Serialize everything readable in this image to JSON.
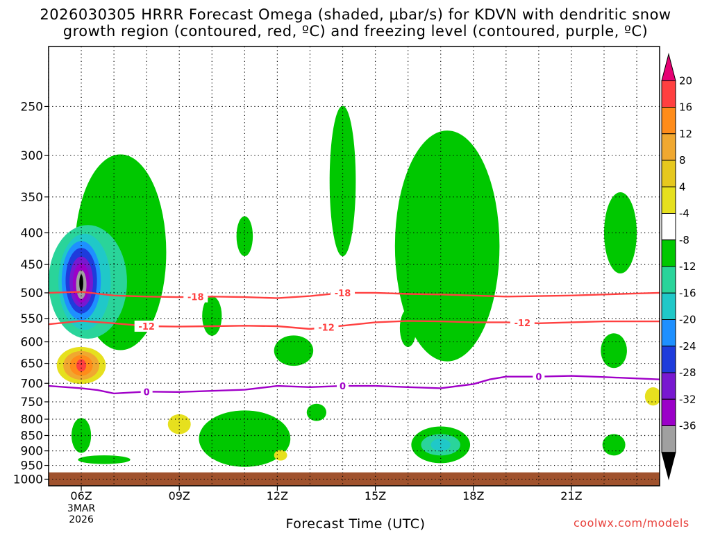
{
  "title_line1": "2026030305 HRRR Forecast Omega (shaded, μbar/s) for KDVN with dendritic snow",
  "title_line2": "growth region (contoured, red, ºC) and freezing level (contoured, purple, ºC)",
  "credit": "coolwx.com/models",
  "chart_data": {
    "type": "contour",
    "xlabel": "Forecast Time (UTC)",
    "x_ticks": [
      {
        "hour": 6,
        "label": "06Z",
        "sublabels": [
          "3MAR",
          "2026"
        ]
      },
      {
        "hour": 9,
        "label": "09Z"
      },
      {
        "hour": 12,
        "label": "12Z"
      },
      {
        "hour": 15,
        "label": "15Z"
      },
      {
        "hour": 18,
        "label": "18Z"
      },
      {
        "hour": 21,
        "label": "21Z"
      }
    ],
    "xlim": [
      5,
      23.7
    ],
    "ylim_hPa": [
      200,
      1025
    ],
    "y_scale": "log",
    "y_ticks": [
      250,
      300,
      350,
      400,
      450,
      500,
      550,
      600,
      650,
      700,
      750,
      800,
      850,
      900,
      950,
      1000
    ],
    "grid": true,
    "colorbar": {
      "labels": [
        "20",
        "16",
        "12",
        "8",
        "4",
        "-4",
        "-8",
        "-12",
        "-16",
        "-20",
        "-24",
        "-28",
        "-32",
        "-36"
      ],
      "colors": [
        "#e60073",
        "#ff4040",
        "#ff8c1a",
        "#f0a830",
        "#e6c81e",
        "#e6e01e",
        "#ffffff",
        "#00c800",
        "#2ad49a",
        "#20c8c8",
        "#1e90ff",
        "#1e3cdc",
        "#7818d0",
        "#9b00c8",
        "#a0a0a0",
        "#000000"
      ]
    },
    "ground_level_hPa": 975,
    "series": [
      {
        "name": "-18",
        "color": "#ff4040",
        "label_hours": [
          9.5,
          14
        ],
        "points": [
          [
            5,
            500
          ],
          [
            6,
            498
          ],
          [
            7,
            505
          ],
          [
            8,
            507
          ],
          [
            9,
            508
          ],
          [
            10,
            507
          ],
          [
            11,
            508
          ],
          [
            12,
            510
          ],
          [
            13,
            506
          ],
          [
            14,
            500
          ],
          [
            15,
            500
          ],
          [
            16,
            502
          ],
          [
            17,
            503
          ],
          [
            18,
            505
          ],
          [
            19,
            507
          ],
          [
            20,
            506
          ],
          [
            21,
            505
          ],
          [
            22,
            503
          ],
          [
            23.7,
            500
          ]
        ]
      },
      {
        "name": "-12",
        "color": "#ff4040",
        "label_hours": [
          8,
          13.5,
          19.5
        ],
        "points": [
          [
            5,
            562
          ],
          [
            6,
            555
          ],
          [
            7,
            560
          ],
          [
            8,
            566
          ],
          [
            9,
            567
          ],
          [
            10,
            566
          ],
          [
            11,
            565
          ],
          [
            12,
            566
          ],
          [
            13,
            572
          ],
          [
            14,
            565
          ],
          [
            15,
            558
          ],
          [
            16,
            555
          ],
          [
            17,
            556
          ],
          [
            18,
            558
          ],
          [
            19,
            558
          ],
          [
            20,
            560
          ],
          [
            21,
            558
          ],
          [
            22,
            556
          ],
          [
            23.7,
            556
          ]
        ]
      },
      {
        "name": "0",
        "color": "#a000c8",
        "label_hours": [
          8,
          14,
          20
        ],
        "points": [
          [
            5,
            707
          ],
          [
            6,
            713
          ],
          [
            6.5,
            718
          ],
          [
            7,
            727
          ],
          [
            8,
            722
          ],
          [
            9,
            723
          ],
          [
            10,
            720
          ],
          [
            11,
            717
          ],
          [
            12,
            707
          ],
          [
            13,
            710
          ],
          [
            14,
            707
          ],
          [
            15,
            707
          ],
          [
            16,
            710
          ],
          [
            17,
            713
          ],
          [
            18,
            702
          ],
          [
            18.5,
            690
          ],
          [
            19,
            683
          ],
          [
            20,
            683
          ],
          [
            21,
            681
          ],
          [
            22,
            684
          ],
          [
            23.7,
            690
          ]
        ]
      }
    ],
    "omega_areas": [
      {
        "level": "-4",
        "color": "#00c800",
        "center_hour": 7.2,
        "center_hPa": 430,
        "hour_radius": 1.4,
        "hPa_radius": 150
      },
      {
        "level": "-4",
        "color": "#00c800",
        "center_hour": 14,
        "center_hPa": 330,
        "hour_radius": 0.4,
        "hPa_radius": 90
      },
      {
        "level": "-4",
        "color": "#00c800",
        "center_hour": 17.2,
        "center_hPa": 420,
        "hour_radius": 1.6,
        "hPa_radius": 170
      },
      {
        "level": "-4",
        "color": "#00c800",
        "center_hour": 11,
        "center_hPa": 860,
        "hour_radius": 1.4,
        "hPa_radius": 90
      },
      {
        "level": "-4",
        "color": "#00c800",
        "center_hour": 17,
        "center_hPa": 880,
        "hour_radius": 0.9,
        "hPa_radius": 60
      },
      {
        "level": "-4",
        "color": "#00c800",
        "center_hour": 22.5,
        "center_hPa": 400,
        "hour_radius": 0.5,
        "hPa_radius": 60
      },
      {
        "level": "-4",
        "color": "#00c800",
        "center_hour": 22.3,
        "center_hPa": 620,
        "hour_radius": 0.4,
        "hPa_radius": 40
      },
      {
        "level": "-4",
        "color": "#00c800",
        "center_hour": 22.3,
        "center_hPa": 880,
        "hour_radius": 0.35,
        "hPa_radius": 35
      },
      {
        "level": "-4",
        "color": "#00c800",
        "center_hour": 10,
        "center_hPa": 545,
        "hour_radius": 0.3,
        "hPa_radius": 40
      },
      {
        "level": "-4",
        "color": "#00c800",
        "center_hour": 11,
        "center_hPa": 405,
        "hour_radius": 0.25,
        "hPa_radius": 30
      },
      {
        "level": "-4",
        "color": "#00c800",
        "center_hour": 12.5,
        "center_hPa": 620,
        "hour_radius": 0.6,
        "hPa_radius": 35
      },
      {
        "level": "-4",
        "color": "#00c800",
        "center_hour": 13.2,
        "center_hPa": 780,
        "hour_radius": 0.3,
        "hPa_radius": 25
      },
      {
        "level": "-4",
        "color": "#00c800",
        "center_hour": 16,
        "center_hPa": 570,
        "hour_radius": 0.25,
        "hPa_radius": 40
      },
      {
        "level": "-4",
        "color": "#00c800",
        "center_hour": 6,
        "center_hPa": 850,
        "hour_radius": 0.3,
        "hPa_radius": 55
      },
      {
        "level": "-4",
        "color": "#00c800",
        "center_hour": 6.7,
        "center_hPa": 930,
        "hour_radius": 0.8,
        "hPa_radius": 15
      },
      {
        "level": "-8",
        "color": "#2ad49a",
        "center_hour": 6.2,
        "center_hPa": 480,
        "hour_radius": 1.2,
        "hPa_radius": 100
      },
      {
        "level": "-8",
        "color": "#2ad49a",
        "center_hour": 17,
        "center_hPa": 880,
        "hour_radius": 0.6,
        "hPa_radius": 35
      },
      {
        "level": "-12",
        "color": "#20c8c8",
        "center_hour": 6.1,
        "center_hPa": 480,
        "hour_radius": 0.8,
        "hPa_radius": 85
      },
      {
        "level": "-12",
        "color": "#20c8c8",
        "center_hour": 17,
        "center_hPa": 880,
        "hour_radius": 0.3,
        "hPa_radius": 20
      },
      {
        "level": "-16",
        "color": "#1e90ff",
        "center_hour": 6,
        "center_hPa": 478,
        "hour_radius": 0.6,
        "hPa_radius": 70
      },
      {
        "level": "-20",
        "color": "#1e3cdc",
        "center_hour": 6,
        "center_hPa": 478,
        "hour_radius": 0.48,
        "hPa_radius": 58
      },
      {
        "level": "-24",
        "color": "#7818d0",
        "center_hour": 6,
        "center_hPa": 480,
        "hour_radius": 0.36,
        "hPa_radius": 45
      },
      {
        "level": "-28",
        "color": "#9b00c8",
        "center_hour": 6,
        "center_hPa": 482,
        "hour_radius": 0.26,
        "hPa_radius": 35
      },
      {
        "level": "-32",
        "color": "#a0a0a0",
        "center_hour": 6,
        "center_hPa": 485,
        "hour_radius": 0.16,
        "hPa_radius": 26
      },
      {
        "level": "-36",
        "color": "#000000",
        "center_hour": 6,
        "center_hPa": 482,
        "hour_radius": 0.06,
        "hPa_radius": 15
      },
      {
        "level": "4",
        "color": "#e6e01e",
        "center_hour": 6,
        "center_hPa": 655,
        "hour_radius": 0.75,
        "hPa_radius": 45
      },
      {
        "level": "4",
        "color": "#e6e01e",
        "center_hour": 9,
        "center_hPa": 815,
        "hour_radius": 0.35,
        "hPa_radius": 30
      },
      {
        "level": "4",
        "color": "#e6e01e",
        "center_hour": 12.1,
        "center_hPa": 915,
        "hour_radius": 0.2,
        "hPa_radius": 18
      },
      {
        "level": "4",
        "color": "#e6e01e",
        "center_hour": 23.5,
        "center_hPa": 735,
        "hour_radius": 0.25,
        "hPa_radius": 25
      },
      {
        "level": "8",
        "color": "#f0a830",
        "center_hour": 6,
        "center_hPa": 655,
        "hour_radius": 0.55,
        "hPa_radius": 35
      },
      {
        "level": "12",
        "color": "#ff8c1a",
        "center_hour": 6,
        "center_hPa": 655,
        "hour_radius": 0.35,
        "hPa_radius": 25
      },
      {
        "level": "16",
        "color": "#ff4040",
        "center_hour": 6,
        "center_hPa": 655,
        "hour_radius": 0.15,
        "hPa_radius": 15
      }
    ]
  }
}
